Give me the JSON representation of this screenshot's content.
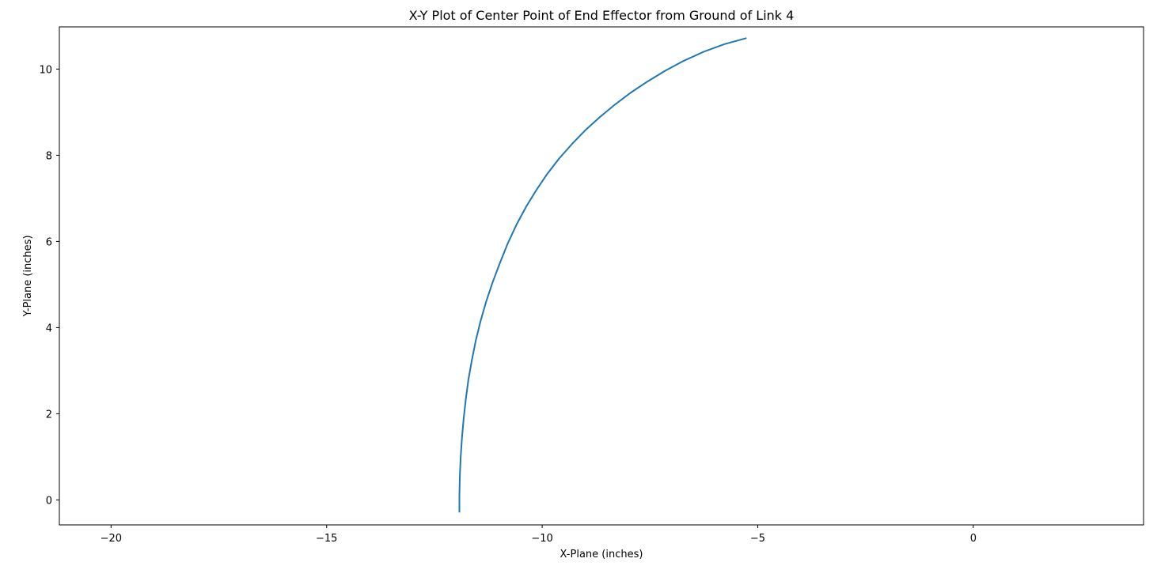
{
  "chart_data": {
    "type": "line",
    "title": "X-Y Plot of Center Point of End Effector from Ground of Link 4",
    "xlabel": "X-Plane (inches)",
    "ylabel": "Y-Plane (inches)",
    "xlim": [
      -21.2,
      3.95
    ],
    "ylim": [
      -0.58,
      10.98
    ],
    "xticks": [
      -20,
      -15,
      -10,
      -5,
      0
    ],
    "yticks": [
      0,
      2,
      4,
      6,
      8,
      10
    ],
    "xtick_labels": [
      "−20",
      "−15",
      "−10",
      "−5",
      "0"
    ],
    "ytick_labels": [
      "0",
      "2",
      "4",
      "6",
      "8",
      "10"
    ],
    "grid": false,
    "series": [
      {
        "color": "#1f77b4",
        "x": [
          -11.92,
          -11.92,
          -11.91,
          -11.89,
          -11.86,
          -11.82,
          -11.77,
          -11.71,
          -11.63,
          -11.54,
          -11.43,
          -11.3,
          -11.15,
          -10.98,
          -10.8,
          -10.59,
          -10.37,
          -10.13,
          -9.88,
          -9.61,
          -9.31,
          -9.0,
          -8.67,
          -8.32,
          -7.95,
          -7.56,
          -7.15,
          -6.72,
          -6.26,
          -5.77,
          -5.26
        ],
        "y": [
          -0.29,
          0.1,
          0.55,
          1.0,
          1.45,
          1.9,
          2.35,
          2.8,
          3.25,
          3.7,
          4.15,
          4.6,
          5.05,
          5.5,
          5.95,
          6.4,
          6.81,
          7.2,
          7.57,
          7.92,
          8.26,
          8.58,
          8.88,
          9.17,
          9.45,
          9.71,
          9.96,
          10.19,
          10.4,
          10.58,
          10.72
        ]
      }
    ]
  }
}
